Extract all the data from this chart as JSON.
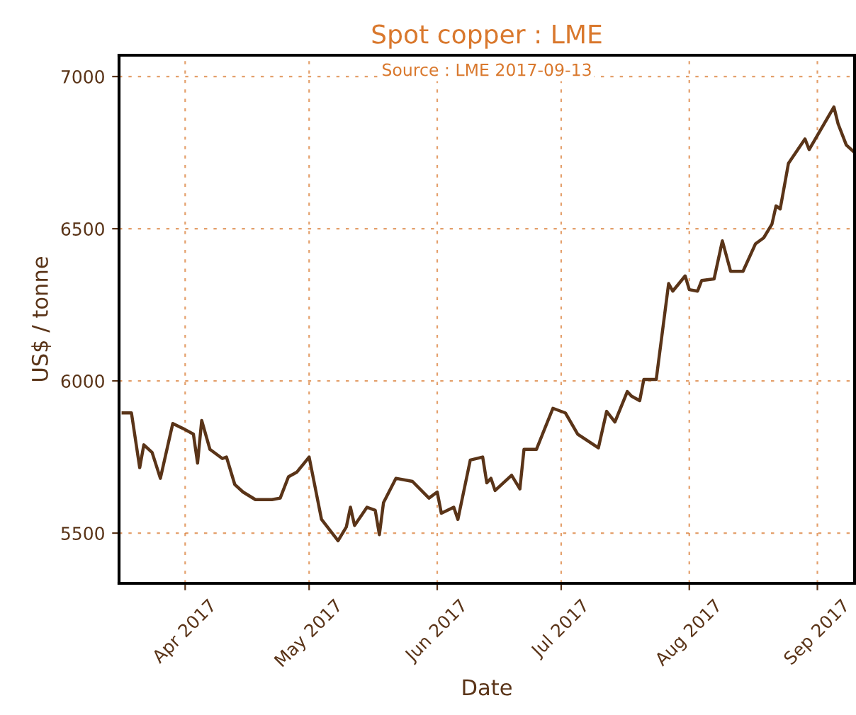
{
  "chart_data": {
    "type": "line",
    "title": "Spot copper : LME",
    "xlabel": "Date",
    "ylabel": "US$ / tonne",
    "annotations": [
      "Source : LME 2017-09-13"
    ],
    "x": [
      "2017-03-17",
      "2017-03-19",
      "2017-03-21",
      "2017-03-22",
      "2017-03-24",
      "2017-03-26",
      "2017-03-29",
      "2017-04-01",
      "2017-04-03",
      "2017-04-04",
      "2017-04-05",
      "2017-04-07",
      "2017-04-10",
      "2017-04-11",
      "2017-04-13",
      "2017-04-15",
      "2017-04-18",
      "2017-04-22",
      "2017-04-24",
      "2017-04-26",
      "2017-04-28",
      "2017-05-01",
      "2017-05-04",
      "2017-05-08",
      "2017-05-10",
      "2017-05-11",
      "2017-05-12",
      "2017-05-15",
      "2017-05-17",
      "2017-05-18",
      "2017-05-19",
      "2017-05-22",
      "2017-05-26",
      "2017-05-30",
      "2017-06-01",
      "2017-06-02",
      "2017-06-05",
      "2017-06-06",
      "2017-06-09",
      "2017-06-12",
      "2017-06-13",
      "2017-06-14",
      "2017-06-15",
      "2017-06-19",
      "2017-06-21",
      "2017-06-22",
      "2017-06-25",
      "2017-06-29",
      "2017-07-02",
      "2017-07-05",
      "2017-07-10",
      "2017-07-12",
      "2017-07-14",
      "2017-07-17",
      "2017-07-18",
      "2017-07-20",
      "2017-07-21",
      "2017-07-24",
      "2017-07-27",
      "2017-07-28",
      "2017-07-31",
      "2017-08-01",
      "2017-08-03",
      "2017-08-04",
      "2017-08-07",
      "2017-08-09",
      "2017-08-11",
      "2017-08-14",
      "2017-08-17",
      "2017-08-19",
      "2017-08-21",
      "2017-08-22",
      "2017-08-23",
      "2017-08-25",
      "2017-08-29",
      "2017-08-30",
      "2017-09-05",
      "2017-09-06",
      "2017-09-08",
      "2017-09-10"
    ],
    "series": [
      {
        "color": "#5a3418",
        "values": [
          5895,
          5895,
          5715,
          5790,
          5765,
          5680,
          5860,
          5840,
          5825,
          5730,
          5870,
          5775,
          5745,
          5750,
          5660,
          5635,
          5610,
          5610,
          5615,
          5685,
          5700,
          5750,
          5545,
          5475,
          5520,
          5585,
          5525,
          5585,
          5575,
          5495,
          5600,
          5680,
          5670,
          5615,
          5635,
          5565,
          5585,
          5545,
          5740,
          5750,
          5665,
          5680,
          5640,
          5690,
          5645,
          5775,
          5775,
          5910,
          5895,
          5825,
          5780,
          5900,
          5865,
          5965,
          5950,
          5935,
          6005,
          6005,
          6320,
          6295,
          6345,
          6300,
          6295,
          6330,
          6335,
          6460,
          6360,
          6360,
          6450,
          6470,
          6515,
          6575,
          6565,
          6715,
          6795,
          6760,
          6900,
          6845,
          6775,
          6750
        ]
      }
    ],
    "xlim": [
      "2017-03-16",
      "2017-09-10"
    ],
    "xticks": [
      {
        "value": "2017-04-01",
        "label": "Apr 2017"
      },
      {
        "value": "2017-05-01",
        "label": "May 2017"
      },
      {
        "value": "2017-06-01",
        "label": "Jun 2017"
      },
      {
        "value": "2017-07-01",
        "label": "Jul 2017"
      },
      {
        "value": "2017-08-01",
        "label": "Aug 2017"
      },
      {
        "value": "2017-09-01",
        "label": "Sep 2017"
      }
    ],
    "ylim": [
      5335,
      7070
    ],
    "yticks": [
      5500,
      6000,
      6500,
      7000
    ],
    "grid": true,
    "line_style": "solid",
    "marker": "none",
    "legend": false
  }
}
